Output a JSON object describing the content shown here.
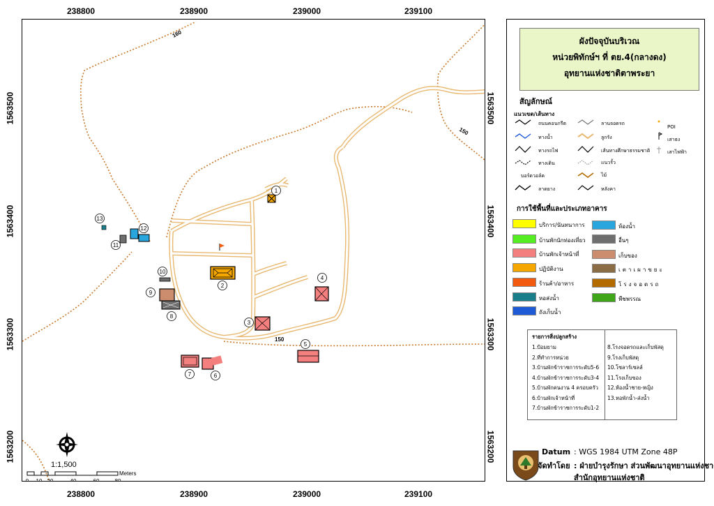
{
  "top_coords": [
    "238800",
    "238900",
    "239000",
    "239100"
  ],
  "bottom_coords": [
    "238800",
    "238900",
    "239000",
    "239100"
  ],
  "left_coords": [
    "1563500",
    "1563400",
    "1563300",
    "1563200"
  ],
  "right_coords": [
    "1563500",
    "1563400",
    "1563300",
    "1563200"
  ],
  "contour_labels": [
    "160",
    "150",
    "150"
  ],
  "building_numbers": [
    "1",
    "2",
    "3",
    "4",
    "5",
    "6",
    "7",
    "8",
    "9",
    "10",
    "11",
    "12",
    "13"
  ],
  "scale": {
    "ratio": "1:1,500",
    "ticks": [
      "0",
      "10",
      "20",
      "40",
      "60",
      "80"
    ],
    "unit": "Meters"
  },
  "title": {
    "line1": "ผังปัจจุบันบริเวณ",
    "line2": "หน่วยพิทักษ์ฯ ที่ ตย.4(กลางดง)",
    "line3": "อุทยานแห่งชาติตาพระยา"
  },
  "legend": {
    "heading": "สัญลักษณ์",
    "lines_heading": "แนวเขต/เส้นทาง",
    "lines": [
      {
        "label": "ถนนคอนกรีต",
        "icon": "concrete-road-symbol"
      },
      {
        "label": "ลานจอดรถ",
        "icon": "parking-lot-symbol"
      },
      {
        "label": "POI",
        "icon": "poi-symbol"
      },
      {
        "label": "ทางน้ำ",
        "icon": "waterway-symbol"
      },
      {
        "label": "ลูกรัง",
        "icon": "laterite-road-symbol"
      },
      {
        "label": "เสาธง",
        "icon": "flagpole-symbol"
      },
      {
        "label": "ทางรถไฟ",
        "icon": "railway-symbol"
      },
      {
        "label": "เส้นทางศึกษาธรรมชาติ",
        "icon": "nature-trail-symbol"
      },
      {
        "label": "เสาไฟฟ้า",
        "icon": "power-pole-symbol"
      },
      {
        "label": "ทางเดิน",
        "icon": "walkway-symbol"
      },
      {
        "label": "แนวรั้ว",
        "icon": "fence-symbol"
      },
      {
        "label": "บอร์ดวอล์ค",
        "icon": "boardwalk-symbol"
      },
      {
        "label": "ไม้",
        "icon": "wood-symbol"
      },
      {
        "label": "ลาดยาง",
        "icon": "asphalt-symbol"
      },
      {
        "label": "หลังคา",
        "icon": "roof-symbol"
      }
    ],
    "landuse_heading": "การใช้พื้นที่และประเภทอาคาร",
    "landuse": [
      {
        "label": "บริการ/นันทนาการ",
        "color": "#ffff00"
      },
      {
        "label": "ห้องน้ำ",
        "color": "#2aa6de"
      },
      {
        "label": "บ้านพักนักท่องเที่ยว",
        "color": "#55ee22"
      },
      {
        "label": "อื่นๆ",
        "color": "#6e6e6e"
      },
      {
        "label": "บ้านพักเจ้าหน้าที่",
        "color": "#f47f7f"
      },
      {
        "label": "เก็บของ",
        "color": "#cc8d6e"
      },
      {
        "label": "ปฏิบัติงาน",
        "color": "#f5a700"
      },
      {
        "label": "เตาเผาขยะ",
        "color": "#8a6d45"
      },
      {
        "label": "ร้านค้า/อาหาร",
        "color": "#f25a0f"
      },
      {
        "label": "โรงจอดรถ",
        "color": "#b36b00"
      },
      {
        "label": "หอส่งน้ำ",
        "color": "#1a7f8a"
      },
      {
        "label": "พืชพรรณ",
        "color": "#3fa61a"
      },
      {
        "label": "ถังเก็บน้ำ",
        "color": "#1f5ad6"
      }
    ],
    "list_heading": "รายการสิ่งปลูกสร้าง",
    "list_left": [
      "1.ป้อมยาม",
      "2.ที่ทำการหน่วย",
      "3.บ้านพักข้าราชการระดับ5-6",
      "4.บ้านพักข้าราชการระดับ3-4",
      "5.บ้านพักคนงาน 4 ครอบครัว",
      "6.บ้านพักเจ้าหน้าที่",
      "7.บ้านพักข้าราชการระดับ1-2"
    ],
    "list_right": [
      "8.โรงจอดรถและเก็บพัสดุ",
      "9.โรงเก็บพัสดุ",
      "10.โซลาร์เซลล์",
      "11.โรงเก็บของ",
      "12.ห้องน้ำชาย-หญิง",
      "13.หอพักน้ำ-ส่งน้ำ"
    ]
  },
  "credits": {
    "datum_label": "Datum",
    "datum_value": ":  WGS 1984 UTM Zone 48P",
    "made_by_label": "จัดทำโดย",
    "made_by_value": ": ฝ่ายบำรุงรักษา ส่วนพัฒนาอุทยานแห่งชาติ",
    "office": "สำนักอุทยานแห่งชาติ"
  }
}
